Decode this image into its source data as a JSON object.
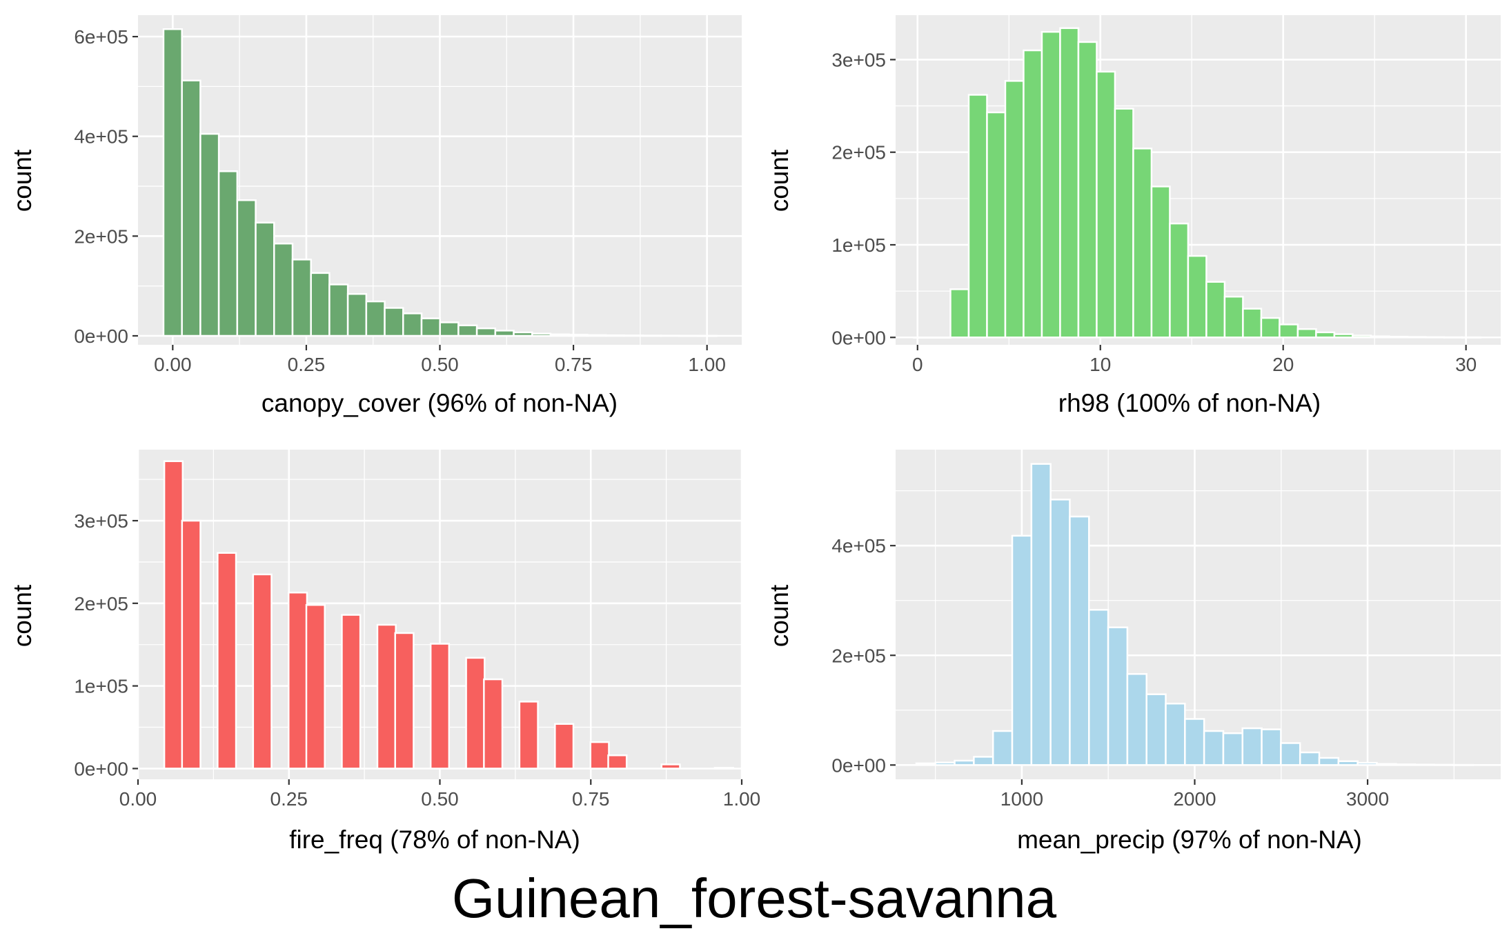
{
  "figure_title": "Guinean_forest-savanna",
  "chart_data": [
    {
      "type": "bar",
      "subtype": "histogram",
      "xlabel": "canopy_cover (96% of non-NA)",
      "ylabel": "count",
      "xlim": [
        -0.065,
        1.065
      ],
      "ylim": [
        -18000,
        643000
      ],
      "x_ticks": [
        0.0,
        0.25,
        0.5,
        0.75,
        1.0
      ],
      "x_tick_labels": [
        "0.00",
        "0.25",
        "0.50",
        "0.75",
        "1.00"
      ],
      "y_ticks": [
        0,
        200000,
        400000,
        600000
      ],
      "y_tick_labels": [
        "0e+00",
        "2e+05",
        "4e+05",
        "6e+05"
      ],
      "bin_width": 0.0345,
      "bin_centers": [
        0.0,
        0.0345,
        0.069,
        0.1035,
        0.138,
        0.1725,
        0.207,
        0.2415,
        0.276,
        0.3105,
        0.345,
        0.3795,
        0.414,
        0.4485,
        0.483,
        0.5175,
        0.552,
        0.5865,
        0.621,
        0.6555,
        0.69,
        0.7245,
        0.759,
        0.7935,
        0.828,
        0.8625,
        0.897,
        0.9315,
        0.966,
        1.0
      ],
      "values": [
        615000,
        512000,
        405000,
        330000,
        272000,
        227000,
        185000,
        153000,
        126000,
        103000,
        84000,
        69000,
        56000,
        45000,
        35000,
        27000,
        21000,
        15000,
        10500,
        7000,
        4500,
        3000,
        2200,
        1500,
        1100,
        800,
        600,
        400,
        300,
        200
      ],
      "grid": true,
      "fill_color": "#6aa86f",
      "edge_color": "#ffffff"
    },
    {
      "type": "bar",
      "subtype": "histogram",
      "xlabel": "rh98 (100% of non-NA)",
      "ylabel": "count",
      "xlim": [
        -1.2,
        31.9
      ],
      "ylim": [
        -8000,
        348000
      ],
      "x_ticks": [
        0,
        10,
        20,
        30
      ],
      "x_tick_labels": [
        "0",
        "10",
        "20",
        "30"
      ],
      "y_ticks": [
        0,
        100000,
        200000,
        300000
      ],
      "y_tick_labels": [
        "0e+00",
        "1e+05",
        "2e+05",
        "3e+05"
      ],
      "bin_width": 1.0,
      "bin_centers": [
        0.3,
        1.3,
        2.3,
        3.3,
        4.3,
        5.3,
        6.3,
        7.3,
        8.3,
        9.3,
        10.3,
        11.3,
        12.3,
        13.3,
        14.3,
        15.3,
        16.3,
        17.3,
        18.3,
        19.3,
        20.3,
        21.3,
        22.3,
        23.3,
        24.3,
        25.3,
        26.3,
        27.3,
        28.3,
        29.3,
        30.3
      ],
      "values": [
        0,
        0,
        52000,
        262000,
        243000,
        277000,
        310000,
        330000,
        334000,
        319000,
        287000,
        247000,
        204000,
        163000,
        123000,
        88000,
        60000,
        44000,
        31000,
        21000,
        14000,
        9000,
        5500,
        3500,
        2000,
        1200,
        800,
        500,
        300,
        200,
        100
      ],
      "grid": true,
      "fill_color": "#77d676",
      "edge_color": "#ffffff"
    },
    {
      "type": "bar",
      "subtype": "histogram",
      "xlabel": "fire_freq (78% of non-NA)",
      "ylabel": "count",
      "xlim": [
        0.0,
        1.0
      ],
      "ylim": [
        -13000,
        386000
      ],
      "x_ticks": [
        0.0,
        0.25,
        0.5,
        0.75,
        1.0
      ],
      "x_tick_labels": [
        "0.00",
        "0.25",
        "0.50",
        "0.75",
        "1.00"
      ],
      "y_ticks": [
        0,
        100000,
        200000,
        300000
      ],
      "y_tick_labels": [
        "0e+00",
        "1e+05",
        "2e+05",
        "3e+05"
      ],
      "bin_width": 0.0305,
      "bin_centers": [
        0.0588,
        0.0882,
        0.1471,
        0.2059,
        0.2647,
        0.2941,
        0.3529,
        0.4118,
        0.4412,
        0.5,
        0.5588,
        0.5882,
        0.6471,
        0.7059,
        0.7647,
        0.7941,
        0.8824,
        0.9706
      ],
      "values": [
        372000,
        300000,
        261000,
        235000,
        213000,
        198000,
        186000,
        174000,
        164000,
        151000,
        134000,
        108000,
        81000,
        54000,
        32000,
        16000,
        5000,
        900
      ],
      "grid": true,
      "fill_color": "#f7605e",
      "edge_color": "#ffffff"
    },
    {
      "type": "bar",
      "subtype": "histogram",
      "xlabel": "mean_precip (97% of non-NA)",
      "ylabel": "count",
      "xlim": [
        270,
        3770
      ],
      "ylim": [
        -26000,
        575000
      ],
      "x_ticks": [
        1000,
        2000,
        3000
      ],
      "x_tick_labels": [
        "1000",
        "2000",
        "3000"
      ],
      "y_ticks": [
        0,
        200000,
        400000
      ],
      "y_tick_labels": [
        "0e+00",
        "2e+05",
        "4e+05"
      ],
      "bin_width": 111,
      "bin_centers": [
        445,
        556,
        667,
        778,
        889,
        1000,
        1111,
        1222,
        1333,
        1444,
        1555,
        1666,
        1777,
        1888,
        1999,
        2110,
        2221,
        2332,
        2443,
        2554,
        2665,
        2776,
        2887,
        2998,
        3109,
        3220,
        3331,
        3442,
        3553
      ],
      "values": [
        3000,
        4500,
        8000,
        15000,
        62000,
        418000,
        549000,
        484000,
        453000,
        283000,
        251000,
        166000,
        129000,
        112000,
        84000,
        62000,
        58000,
        67000,
        65000,
        40000,
        23000,
        13000,
        7000,
        4000,
        2000,
        1200,
        800,
        500,
        300
      ],
      "grid": true,
      "fill_color": "#acd7eb",
      "edge_color": "#ffffff"
    }
  ]
}
